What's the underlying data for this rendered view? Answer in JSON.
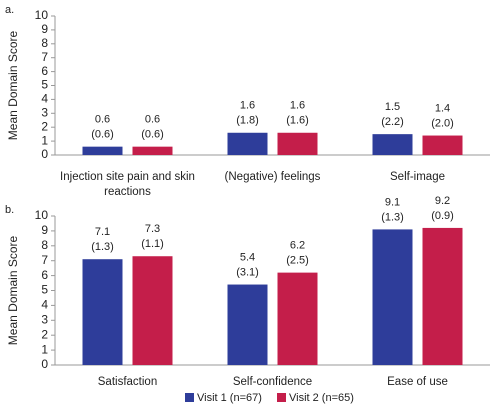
{
  "chart_data": [
    {
      "type": "bar",
      "panel_label": "a.",
      "y_label": "Mean Domain Score",
      "categories": [
        "Injection site pain and skin reactions",
        "(Negative) feelings",
        "Self-image"
      ],
      "series": [
        {
          "color": "#2e3d9a",
          "values": [
            0.6,
            1.6,
            1.5
          ],
          "sd_labels": [
            "(0.6)",
            "(1.8)",
            "(2.2)"
          ]
        },
        {
          "color": "#c41e4a",
          "values": [
            0.6,
            1.6,
            1.4
          ],
          "sd_labels": [
            "(0.6)",
            "(1.6)",
            "(2.0)"
          ]
        }
      ],
      "ylim": [
        0,
        10
      ],
      "yticks": [
        0,
        1,
        2,
        3,
        4,
        5,
        6,
        7,
        8,
        9,
        10
      ]
    },
    {
      "type": "bar",
      "panel_label": "b.",
      "y_label": "Mean Domain Score",
      "categories": [
        "Satisfaction",
        "Self-confidence",
        "Ease of use"
      ],
      "series": [
        {
          "name": "Visit 1 (n=67)",
          "color": "#2e3d9a",
          "values": [
            7.1,
            5.4,
            9.1
          ],
          "sd_labels": [
            "(1.3)",
            "(3.1)",
            "(1.3)"
          ]
        },
        {
          "name": "Visit 2 (n=65)",
          "color": "#c41e4a",
          "values": [
            7.3,
            6.2,
            9.2
          ],
          "sd_labels": [
            "(1.1)",
            "(2.5)",
            "(0.9)"
          ]
        }
      ],
      "ylim": [
        0,
        10
      ],
      "yticks": [
        0,
        1,
        2,
        3,
        4,
        5,
        6,
        7,
        8,
        9,
        10
      ],
      "legend": "bottom"
    }
  ]
}
